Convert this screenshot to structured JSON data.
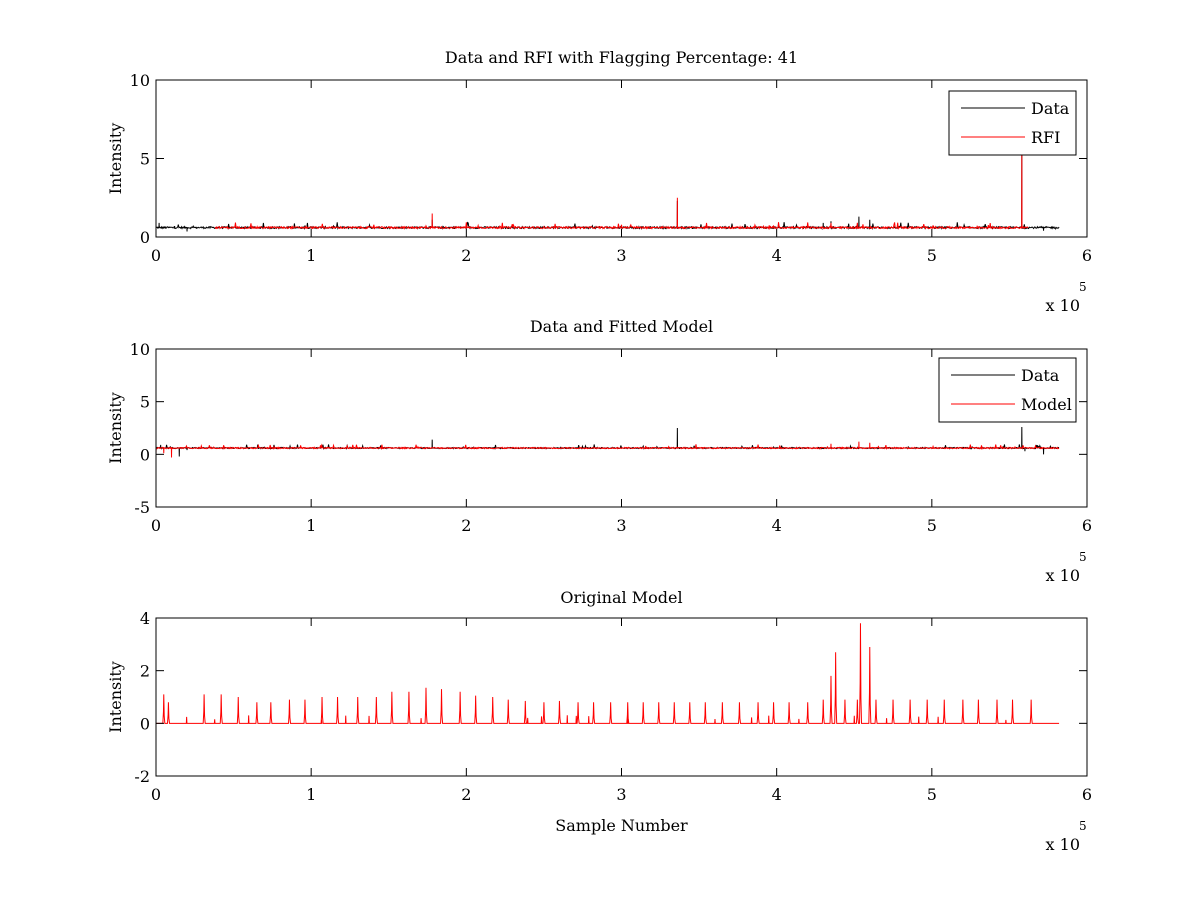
{
  "colors": {
    "data": "#000000",
    "rfi": "#ff0000",
    "model": "#ff0000",
    "axes": "#000000",
    "background": "#ffffff"
  },
  "chart_data": [
    {
      "type": "line",
      "title": "Data and RFI with Flagging Percentage: 41",
      "xlabel": "",
      "ylabel": "Intensity",
      "xlim": [
        0,
        6
      ],
      "ylim": [
        0,
        10
      ],
      "xticks": [
        "0",
        "1",
        "2",
        "3",
        "4",
        "5",
        "6"
      ],
      "yticks": [
        "0",
        "5",
        "10"
      ],
      "x_multiplier": {
        "base": "x 10",
        "exponent": "5"
      },
      "legend": {
        "placement": "top-right",
        "entries": [
          "Data",
          "RFI"
        ]
      },
      "grid": false,
      "series": [
        {
          "name": "Data",
          "color": "#000000",
          "baseline": 0.6,
          "x_range": [
            0,
            5.82
          ],
          "points": [
            [
              0,
              0.75
            ],
            [
              0.02,
              0.9
            ],
            [
              0.06,
              0.65
            ],
            [
              0.12,
              0.7
            ],
            [
              0.2,
              0.35
            ],
            [
              0.26,
              0.6
            ],
            [
              0.4,
              0.6
            ],
            [
              1.78,
              1.1
            ],
            [
              3.36,
              2.3
            ],
            [
              4.3,
              0.9
            ],
            [
              4.35,
              1.0
            ],
            [
              4.53,
              1.3
            ],
            [
              4.6,
              1.1
            ],
            [
              5.58,
              5.2
            ],
            [
              5.6,
              0.5
            ],
            [
              5.72,
              0.4
            ],
            [
              5.8,
              0.55
            ]
          ]
        },
        {
          "name": "RFI",
          "color": "#ff0000",
          "baseline": 0.6,
          "x_range": [
            0.38,
            5.62
          ],
          "points": [
            [
              1.78,
              1.5
            ],
            [
              3.36,
              2.5
            ],
            [
              4.35,
              0.9
            ],
            [
              5.58,
              5.3
            ]
          ]
        }
      ]
    },
    {
      "type": "line",
      "title": "Data and Fitted Model",
      "xlabel": "",
      "ylabel": "Intensity",
      "xlim": [
        0,
        6
      ],
      "ylim": [
        -5,
        10
      ],
      "xticks": [
        "0",
        "1",
        "2",
        "3",
        "4",
        "5",
        "6"
      ],
      "yticks": [
        "-5",
        "0",
        "5",
        "10"
      ],
      "x_multiplier": {
        "base": "x 10",
        "exponent": "5"
      },
      "legend": {
        "placement": "top-right",
        "entries": [
          "Data",
          "Model"
        ]
      },
      "grid": false,
      "series": [
        {
          "name": "Data",
          "color": "#000000",
          "baseline": 0.6,
          "x_range": [
            0,
            5.82
          ],
          "points": [
            [
              0,
              0.8
            ],
            [
              0.03,
              0.9
            ],
            [
              0.08,
              0.5
            ],
            [
              0.15,
              -0.2
            ],
            [
              0.2,
              0.4
            ],
            [
              1.78,
              1.4
            ],
            [
              3.36,
              2.5
            ],
            [
              5.58,
              2.6
            ],
            [
              5.6,
              0.3
            ],
            [
              5.72,
              0.0
            ],
            [
              5.8,
              0.6
            ]
          ]
        },
        {
          "name": "Model",
          "color": "#ff0000",
          "baseline": 0.6,
          "x_range": [
            0,
            5.82
          ],
          "points": [
            [
              0,
              0.0
            ],
            [
              0.05,
              0.1
            ],
            [
              0.08,
              0.6
            ],
            [
              0.1,
              -0.3
            ],
            [
              4.35,
              1.0
            ],
            [
              4.53,
              1.2
            ],
            [
              4.6,
              1.1
            ],
            [
              5.8,
              0.6
            ]
          ]
        }
      ]
    },
    {
      "type": "line",
      "title": "Original Model",
      "xlabel": "Sample Number",
      "ylabel": "Intensity",
      "xlim": [
        0,
        6
      ],
      "ylim": [
        -2,
        4
      ],
      "xticks": [
        "0",
        "1",
        "2",
        "3",
        "4",
        "5",
        "6"
      ],
      "yticks": [
        "-2",
        "0",
        "2",
        "4"
      ],
      "x_multiplier": {
        "base": "x 10",
        "exponent": "5"
      },
      "legend": null,
      "grid": false,
      "series": [
        {
          "name": "",
          "color": "#ff0000",
          "baseline": 0.0,
          "x_range": [
            0,
            5.82
          ],
          "peaks": [
            [
              0.05,
              1.1
            ],
            [
              0.08,
              0.8
            ],
            [
              0.31,
              1.1
            ],
            [
              0.42,
              1.1
            ],
            [
              0.53,
              1.0
            ],
            [
              0.65,
              0.8
            ],
            [
              0.74,
              0.8
            ],
            [
              0.86,
              0.9
            ],
            [
              0.96,
              0.9
            ],
            [
              1.07,
              1.0
            ],
            [
              1.17,
              1.0
            ],
            [
              1.3,
              1.0
            ],
            [
              1.42,
              1.0
            ],
            [
              1.52,
              1.2
            ],
            [
              1.63,
              1.2
            ],
            [
              1.74,
              1.35
            ],
            [
              1.84,
              1.3
            ],
            [
              1.96,
              1.2
            ],
            [
              2.06,
              1.05
            ],
            [
              2.17,
              1.0
            ],
            [
              2.27,
              0.9
            ],
            [
              2.38,
              0.85
            ],
            [
              2.5,
              0.8
            ],
            [
              2.6,
              0.85
            ],
            [
              2.72,
              0.8
            ],
            [
              2.82,
              0.8
            ],
            [
              2.93,
              0.8
            ],
            [
              3.04,
              0.8
            ],
            [
              3.14,
              0.8
            ],
            [
              3.24,
              0.8
            ],
            [
              3.34,
              0.8
            ],
            [
              3.44,
              0.8
            ],
            [
              3.54,
              0.8
            ],
            [
              3.65,
              0.8
            ],
            [
              3.76,
              0.8
            ],
            [
              3.88,
              0.8
            ],
            [
              3.98,
              0.8
            ],
            [
              4.08,
              0.8
            ],
            [
              4.2,
              0.8
            ],
            [
              4.3,
              0.9
            ],
            [
              4.35,
              1.8
            ],
            [
              4.38,
              2.7
            ],
            [
              4.44,
              0.9
            ],
            [
              4.52,
              0.9
            ],
            [
              4.54,
              3.8
            ],
            [
              4.6,
              2.9
            ],
            [
              4.64,
              0.9
            ],
            [
              4.75,
              0.9
            ],
            [
              4.86,
              0.9
            ],
            [
              4.97,
              0.9
            ],
            [
              5.08,
              0.9
            ],
            [
              5.2,
              0.9
            ],
            [
              5.3,
              0.9
            ],
            [
              5.42,
              0.9
            ],
            [
              5.52,
              0.9
            ],
            [
              5.64,
              0.9
            ]
          ]
        }
      ]
    }
  ]
}
